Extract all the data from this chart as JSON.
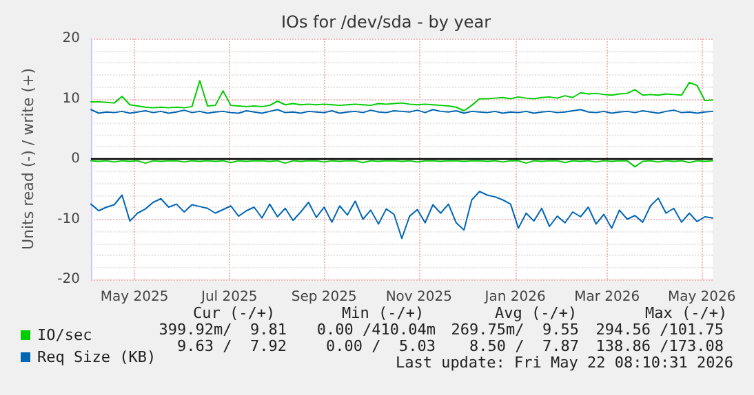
{
  "chart_data": {
    "type": "line",
    "title": "IOs for /dev/sda - by year",
    "ylabel": "Units read (-) / write (+)",
    "x": [
      "2025-04-18",
      "2025-04-23",
      "2025-04-28",
      "2025-05-03",
      "2025-05-08",
      "2025-05-13",
      "2025-05-18",
      "2025-05-23",
      "2025-05-28",
      "2025-06-02",
      "2025-06-07",
      "2025-06-12",
      "2025-06-17",
      "2025-06-22",
      "2025-06-27",
      "2025-07-02",
      "2025-07-07",
      "2025-07-12",
      "2025-07-17",
      "2025-07-22",
      "2025-07-27",
      "2025-08-01",
      "2025-08-06",
      "2025-08-11",
      "2025-08-16",
      "2025-08-21",
      "2025-08-26",
      "2025-08-31",
      "2025-09-05",
      "2025-09-10",
      "2025-09-15",
      "2025-09-20",
      "2025-09-25",
      "2025-09-30",
      "2025-10-05",
      "2025-10-10",
      "2025-10-15",
      "2025-10-20",
      "2025-10-25",
      "2025-10-30",
      "2025-11-04",
      "2025-11-09",
      "2025-11-14",
      "2025-11-19",
      "2025-11-24",
      "2025-11-29",
      "2025-12-04",
      "2025-12-09",
      "2025-12-14",
      "2025-12-19",
      "2025-12-24",
      "2025-12-29",
      "2026-01-03",
      "2026-01-08",
      "2026-01-13",
      "2026-01-18",
      "2026-01-23",
      "2026-01-28",
      "2026-02-02",
      "2026-02-07",
      "2026-02-12",
      "2026-02-17",
      "2026-02-22",
      "2026-02-27",
      "2026-03-04",
      "2026-03-09",
      "2026-03-14",
      "2026-03-19",
      "2026-03-24",
      "2026-03-29",
      "2026-04-03",
      "2026-04-08",
      "2026-04-13",
      "2026-04-18",
      "2026-04-23",
      "2026-04-28",
      "2026-05-03",
      "2026-05-08",
      "2026-05-13",
      "2026-05-18",
      "2026-05-23"
    ],
    "series": [
      {
        "name": "IO/sec",
        "color": "#00cc00",
        "values": [
          9.5,
          9.5,
          9.4,
          9.3,
          10.4,
          9.0,
          8.8,
          8.6,
          8.5,
          8.6,
          8.5,
          8.6,
          8.5,
          8.7,
          13.0,
          8.8,
          8.9,
          11.3,
          8.9,
          8.8,
          8.7,
          8.8,
          8.7,
          8.9,
          9.6,
          9.0,
          9.2,
          9.0,
          9.1,
          9.0,
          9.1,
          9.0,
          8.9,
          9.0,
          9.1,
          9.0,
          8.9,
          9.2,
          9.1,
          9.2,
          9.3,
          9.1,
          9.0,
          9.1,
          9.0,
          8.9,
          8.8,
          8.6,
          8.0,
          8.9,
          10.0,
          10.0,
          10.1,
          10.2,
          10.0,
          10.3,
          10.1,
          10.0,
          10.2,
          10.3,
          10.1,
          10.5,
          10.2,
          11.0,
          10.8,
          10.9,
          10.7,
          10.6,
          10.8,
          10.9,
          11.5,
          10.6,
          10.7,
          10.6,
          10.8,
          10.7,
          10.6,
          12.7,
          12.2,
          9.7,
          9.8
        ]
      },
      {
        "color": "#00cc00",
        "values": [
          -0.3,
          -0.4,
          -0.3,
          -0.5,
          -0.3,
          -0.4,
          -0.3,
          -0.7,
          -0.3,
          -0.4,
          -0.3,
          -0.3,
          -0.5,
          -0.3,
          -0.4,
          -0.3,
          -0.4,
          -0.3,
          -0.6,
          -0.3,
          -0.4,
          -0.3,
          -0.3,
          -0.4,
          -0.3,
          -0.7,
          -0.3,
          -0.4,
          -0.3,
          -0.3,
          -0.5,
          -0.3,
          -0.4,
          -0.3,
          -0.3,
          -0.6,
          -0.3,
          -0.4,
          -0.3,
          -0.3,
          -0.4,
          -0.3,
          -0.5,
          -0.3,
          -0.3,
          -0.4,
          -0.3,
          -0.3,
          -0.4,
          -0.3,
          -0.3,
          -0.4,
          -0.3,
          -0.5,
          -0.3,
          -0.3,
          -0.7,
          -0.3,
          -0.4,
          -0.3,
          -0.3,
          -0.6,
          -0.3,
          -0.4,
          -0.3,
          -0.5,
          -0.3,
          -0.4,
          -0.3,
          -0.3,
          -1.3,
          -0.4,
          -0.3,
          -0.5,
          -0.3,
          -0.4,
          -0.3,
          -0.6,
          -0.3,
          -0.4,
          -0.3
        ]
      },
      {
        "name": "Req Size (KB)",
        "color": "#0066b3",
        "values": [
          8.2,
          7.6,
          7.8,
          7.7,
          7.9,
          7.6,
          7.8,
          8.0,
          7.7,
          7.9,
          7.6,
          7.8,
          8.1,
          7.7,
          7.9,
          7.6,
          7.8,
          7.9,
          7.7,
          7.6,
          8.0,
          7.8,
          7.6,
          7.9,
          8.2,
          7.7,
          7.8,
          7.6,
          7.9,
          7.8,
          7.7,
          8.0,
          7.6,
          7.8,
          7.9,
          7.7,
          8.1,
          7.8,
          7.7,
          8.0,
          7.9,
          7.8,
          8.1,
          7.7,
          8.2,
          7.9,
          7.8,
          8.0,
          7.6,
          7.9,
          7.8,
          7.7,
          7.9,
          7.6,
          7.8,
          7.7,
          7.9,
          7.6,
          7.8,
          7.9,
          7.7,
          7.8,
          8.0,
          8.2,
          7.8,
          7.7,
          7.9,
          7.6,
          7.8,
          7.9,
          7.7,
          8.0,
          7.8,
          7.6,
          7.9,
          8.1,
          7.7,
          7.8,
          7.6,
          7.8,
          7.9
        ]
      },
      {
        "color": "#0066b3",
        "values": [
          -7.5,
          -8.6,
          -8.0,
          -7.6,
          -6.0,
          -10.3,
          -9.0,
          -8.3,
          -7.2,
          -6.6,
          -8.0,
          -7.5,
          -8.8,
          -7.6,
          -7.9,
          -8.2,
          -9.0,
          -8.4,
          -7.8,
          -9.5,
          -8.6,
          -8.0,
          -9.8,
          -7.5,
          -9.6,
          -8.2,
          -10.2,
          -8.8,
          -7.2,
          -9.7,
          -8.0,
          -10.5,
          -7.8,
          -9.3,
          -7.0,
          -10.0,
          -8.5,
          -10.8,
          -8.3,
          -9.2,
          -13.2,
          -9.5,
          -8.4,
          -10.6,
          -7.6,
          -9.0,
          -7.5,
          -10.6,
          -11.8,
          -6.8,
          -5.4,
          -6.0,
          -6.3,
          -6.8,
          -7.5,
          -11.5,
          -9.0,
          -10.3,
          -8.2,
          -11.2,
          -9.5,
          -10.6,
          -8.8,
          -9.6,
          -8.0,
          -10.8,
          -9.2,
          -11.5,
          -8.5,
          -10.0,
          -9.4,
          -10.5,
          -7.8,
          -6.5,
          -9.0,
          -8.2,
          -10.5,
          -9.0,
          -10.4,
          -9.6,
          -9.8
        ]
      }
    ],
    "xlim": [
      "2025-04-18",
      "2026-05-23"
    ],
    "xticks": [
      {
        "value": "2025-05-16",
        "label": "May 2025"
      },
      {
        "value": "2025-07-16",
        "label": "Jul 2025"
      },
      {
        "value": "2025-09-15",
        "label": "Sep 2025"
      },
      {
        "value": "2025-11-15",
        "label": "Nov 2025"
      },
      {
        "value": "2026-01-16",
        "label": "Jan 2026"
      },
      {
        "value": "2026-03-16",
        "label": "Mar 2026"
      },
      {
        "value": "2026-05-16",
        "label": "May 2026"
      }
    ],
    "ylim": [
      -20,
      20
    ],
    "yticks": [
      -20,
      -10,
      0,
      10,
      20
    ],
    "ref_lines": [
      {
        "axis": "y",
        "value": 0,
        "color": "#000000"
      }
    ],
    "grid": true,
    "legend": "bottom left",
    "marker": "none",
    "line_style": "solid",
    "annotations": [
      "Cur (-/+)",
      "Min (-/+)",
      "Avg (-/+)",
      "Max (-/+)",
      "399.92m/  9.81",
      "0.00 /410.04m",
      "269.75m/  9.55",
      "294.56 /101.75",
      "9.63 /  7.92",
      "0.00 /  5.03",
      "8.50 /  7.87",
      "138.86 /173.08",
      "Last update: Fri May 22 08:10:31 2026"
    ]
  }
}
